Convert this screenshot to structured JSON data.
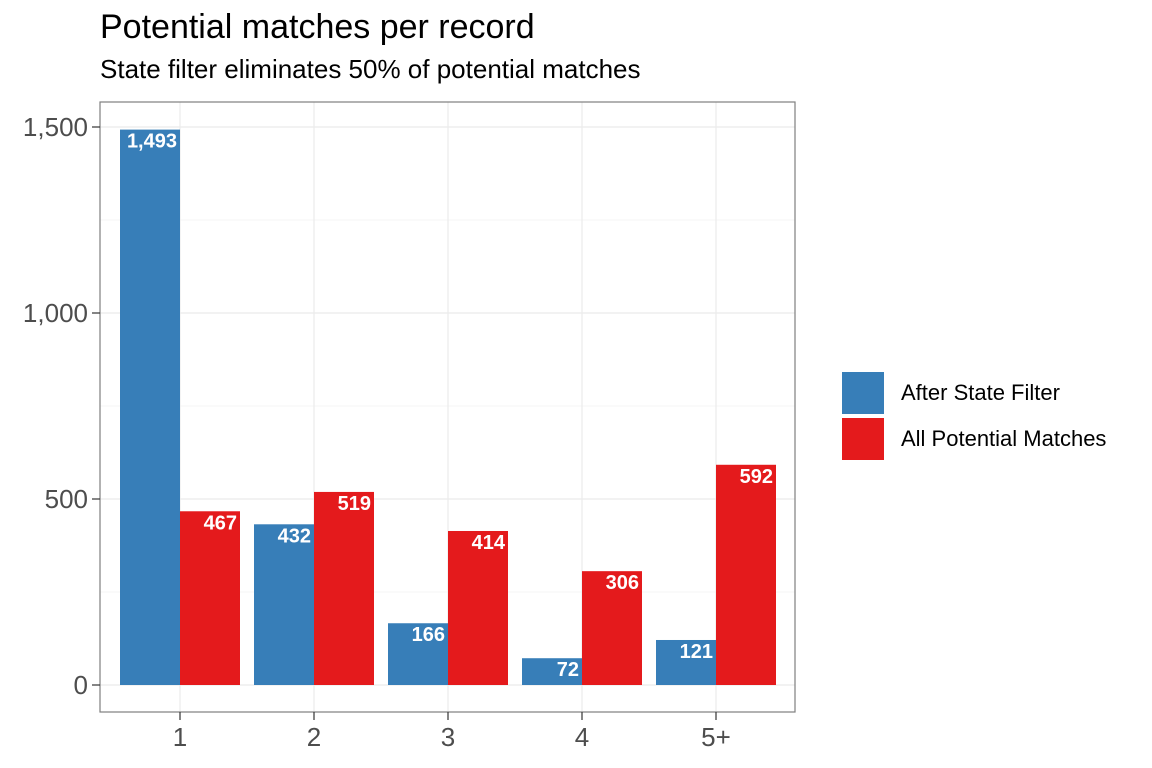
{
  "chart_data": {
    "type": "bar",
    "title": "Potential matches per record",
    "subtitle": "State filter eliminates 50% of potential matches",
    "xlabel": "",
    "ylabel": "",
    "categories": [
      "1",
      "2",
      "3",
      "4",
      "5+"
    ],
    "series": [
      {
        "name": "After State Filter",
        "color": "#377EB8",
        "values": [
          1493,
          432,
          166,
          72,
          121
        ],
        "labels": [
          "1,493",
          "432",
          "166",
          "72",
          "121"
        ]
      },
      {
        "name": "All Potential Matches",
        "color": "#E41A1C",
        "values": [
          467,
          519,
          414,
          306,
          592
        ],
        "labels": [
          "467",
          "519",
          "414",
          "306",
          "592"
        ]
      }
    ],
    "ylim": [
      0,
      1643
    ],
    "yticks": [
      0,
      500,
      1000,
      1500
    ],
    "ytick_labels": [
      "0",
      "500",
      "1,000",
      "1,500"
    ],
    "grid": true,
    "legend_position": "right",
    "data_labels": true
  }
}
